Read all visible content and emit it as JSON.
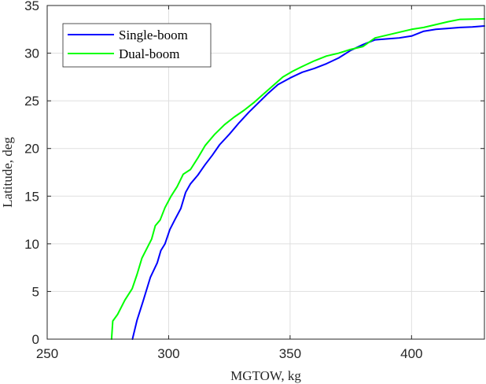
{
  "chart_data": {
    "type": "line",
    "title": "",
    "xlabel": "MGTOW, kg",
    "ylabel": "Latitude, deg",
    "xlim": [
      250,
      430
    ],
    "ylim": [
      0,
      35
    ],
    "xticks": [
      250,
      300,
      350,
      400
    ],
    "yticks": [
      0,
      5,
      10,
      15,
      20,
      25,
      30,
      35
    ],
    "grid": true,
    "legend_position": "top-left",
    "series": [
      {
        "name": "Single-boom",
        "color": "#0000ff",
        "points": [
          [
            285.1,
            0.0
          ],
          [
            287.0,
            2.0
          ],
          [
            289.5,
            4.0
          ],
          [
            292.5,
            6.5
          ],
          [
            295.3,
            8.0
          ],
          [
            296.8,
            9.3
          ],
          [
            298.5,
            10.0
          ],
          [
            300.5,
            11.5
          ],
          [
            302.5,
            12.5
          ],
          [
            305.0,
            13.7
          ],
          [
            307.0,
            15.4
          ],
          [
            309.0,
            16.3
          ],
          [
            312.0,
            17.2
          ],
          [
            315.0,
            18.3
          ],
          [
            318.0,
            19.3
          ],
          [
            321.0,
            20.4
          ],
          [
            325.0,
            21.5
          ],
          [
            329.0,
            22.7
          ],
          [
            333.0,
            23.8
          ],
          [
            337.0,
            24.8
          ],
          [
            341.0,
            25.8
          ],
          [
            345.0,
            26.7
          ],
          [
            350.0,
            27.4
          ],
          [
            355.0,
            28.0
          ],
          [
            360.0,
            28.4
          ],
          [
            365.0,
            28.9
          ],
          [
            370.0,
            29.5
          ],
          [
            375.0,
            30.3
          ],
          [
            380.0,
            30.9
          ],
          [
            385.0,
            31.4
          ],
          [
            390.0,
            31.5
          ],
          [
            395.0,
            31.6
          ],
          [
            400.0,
            31.8
          ],
          [
            405.0,
            32.3
          ],
          [
            410.0,
            32.5
          ],
          [
            415.0,
            32.6
          ],
          [
            420.0,
            32.7
          ],
          [
            425.0,
            32.75
          ],
          [
            430.0,
            32.85
          ]
        ]
      },
      {
        "name": "Dual-boom",
        "color": "#00ff00",
        "points": [
          [
            276.5,
            0.0
          ],
          [
            277.0,
            1.9
          ],
          [
            279.0,
            2.6
          ],
          [
            282.0,
            4.1
          ],
          [
            285.0,
            5.3
          ],
          [
            287.0,
            6.8
          ],
          [
            289.0,
            8.5
          ],
          [
            291.0,
            9.5
          ],
          [
            293.0,
            10.5
          ],
          [
            294.5,
            11.9
          ],
          [
            296.5,
            12.5
          ],
          [
            298.5,
            13.8
          ],
          [
            301.0,
            15.0
          ],
          [
            303.5,
            16.0
          ],
          [
            306.0,
            17.3
          ],
          [
            309.0,
            17.8
          ],
          [
            312.0,
            19.0
          ],
          [
            315.0,
            20.3
          ],
          [
            319.0,
            21.5
          ],
          [
            323.0,
            22.5
          ],
          [
            327.0,
            23.3
          ],
          [
            331.0,
            24.0
          ],
          [
            335.0,
            24.8
          ],
          [
            339.0,
            25.7
          ],
          [
            343.0,
            26.6
          ],
          [
            347.0,
            27.5
          ],
          [
            351.0,
            28.1
          ],
          [
            355.0,
            28.6
          ],
          [
            360.0,
            29.2
          ],
          [
            365.0,
            29.7
          ],
          [
            370.0,
            30.0
          ],
          [
            375.0,
            30.4
          ],
          [
            380.0,
            30.7
          ],
          [
            385.0,
            31.6
          ],
          [
            390.0,
            31.9
          ],
          [
            395.0,
            32.2
          ],
          [
            400.0,
            32.5
          ],
          [
            405.0,
            32.7
          ],
          [
            410.0,
            33.0
          ],
          [
            415.0,
            33.3
          ],
          [
            420.0,
            33.55
          ],
          [
            430.0,
            33.6
          ]
        ]
      }
    ]
  }
}
